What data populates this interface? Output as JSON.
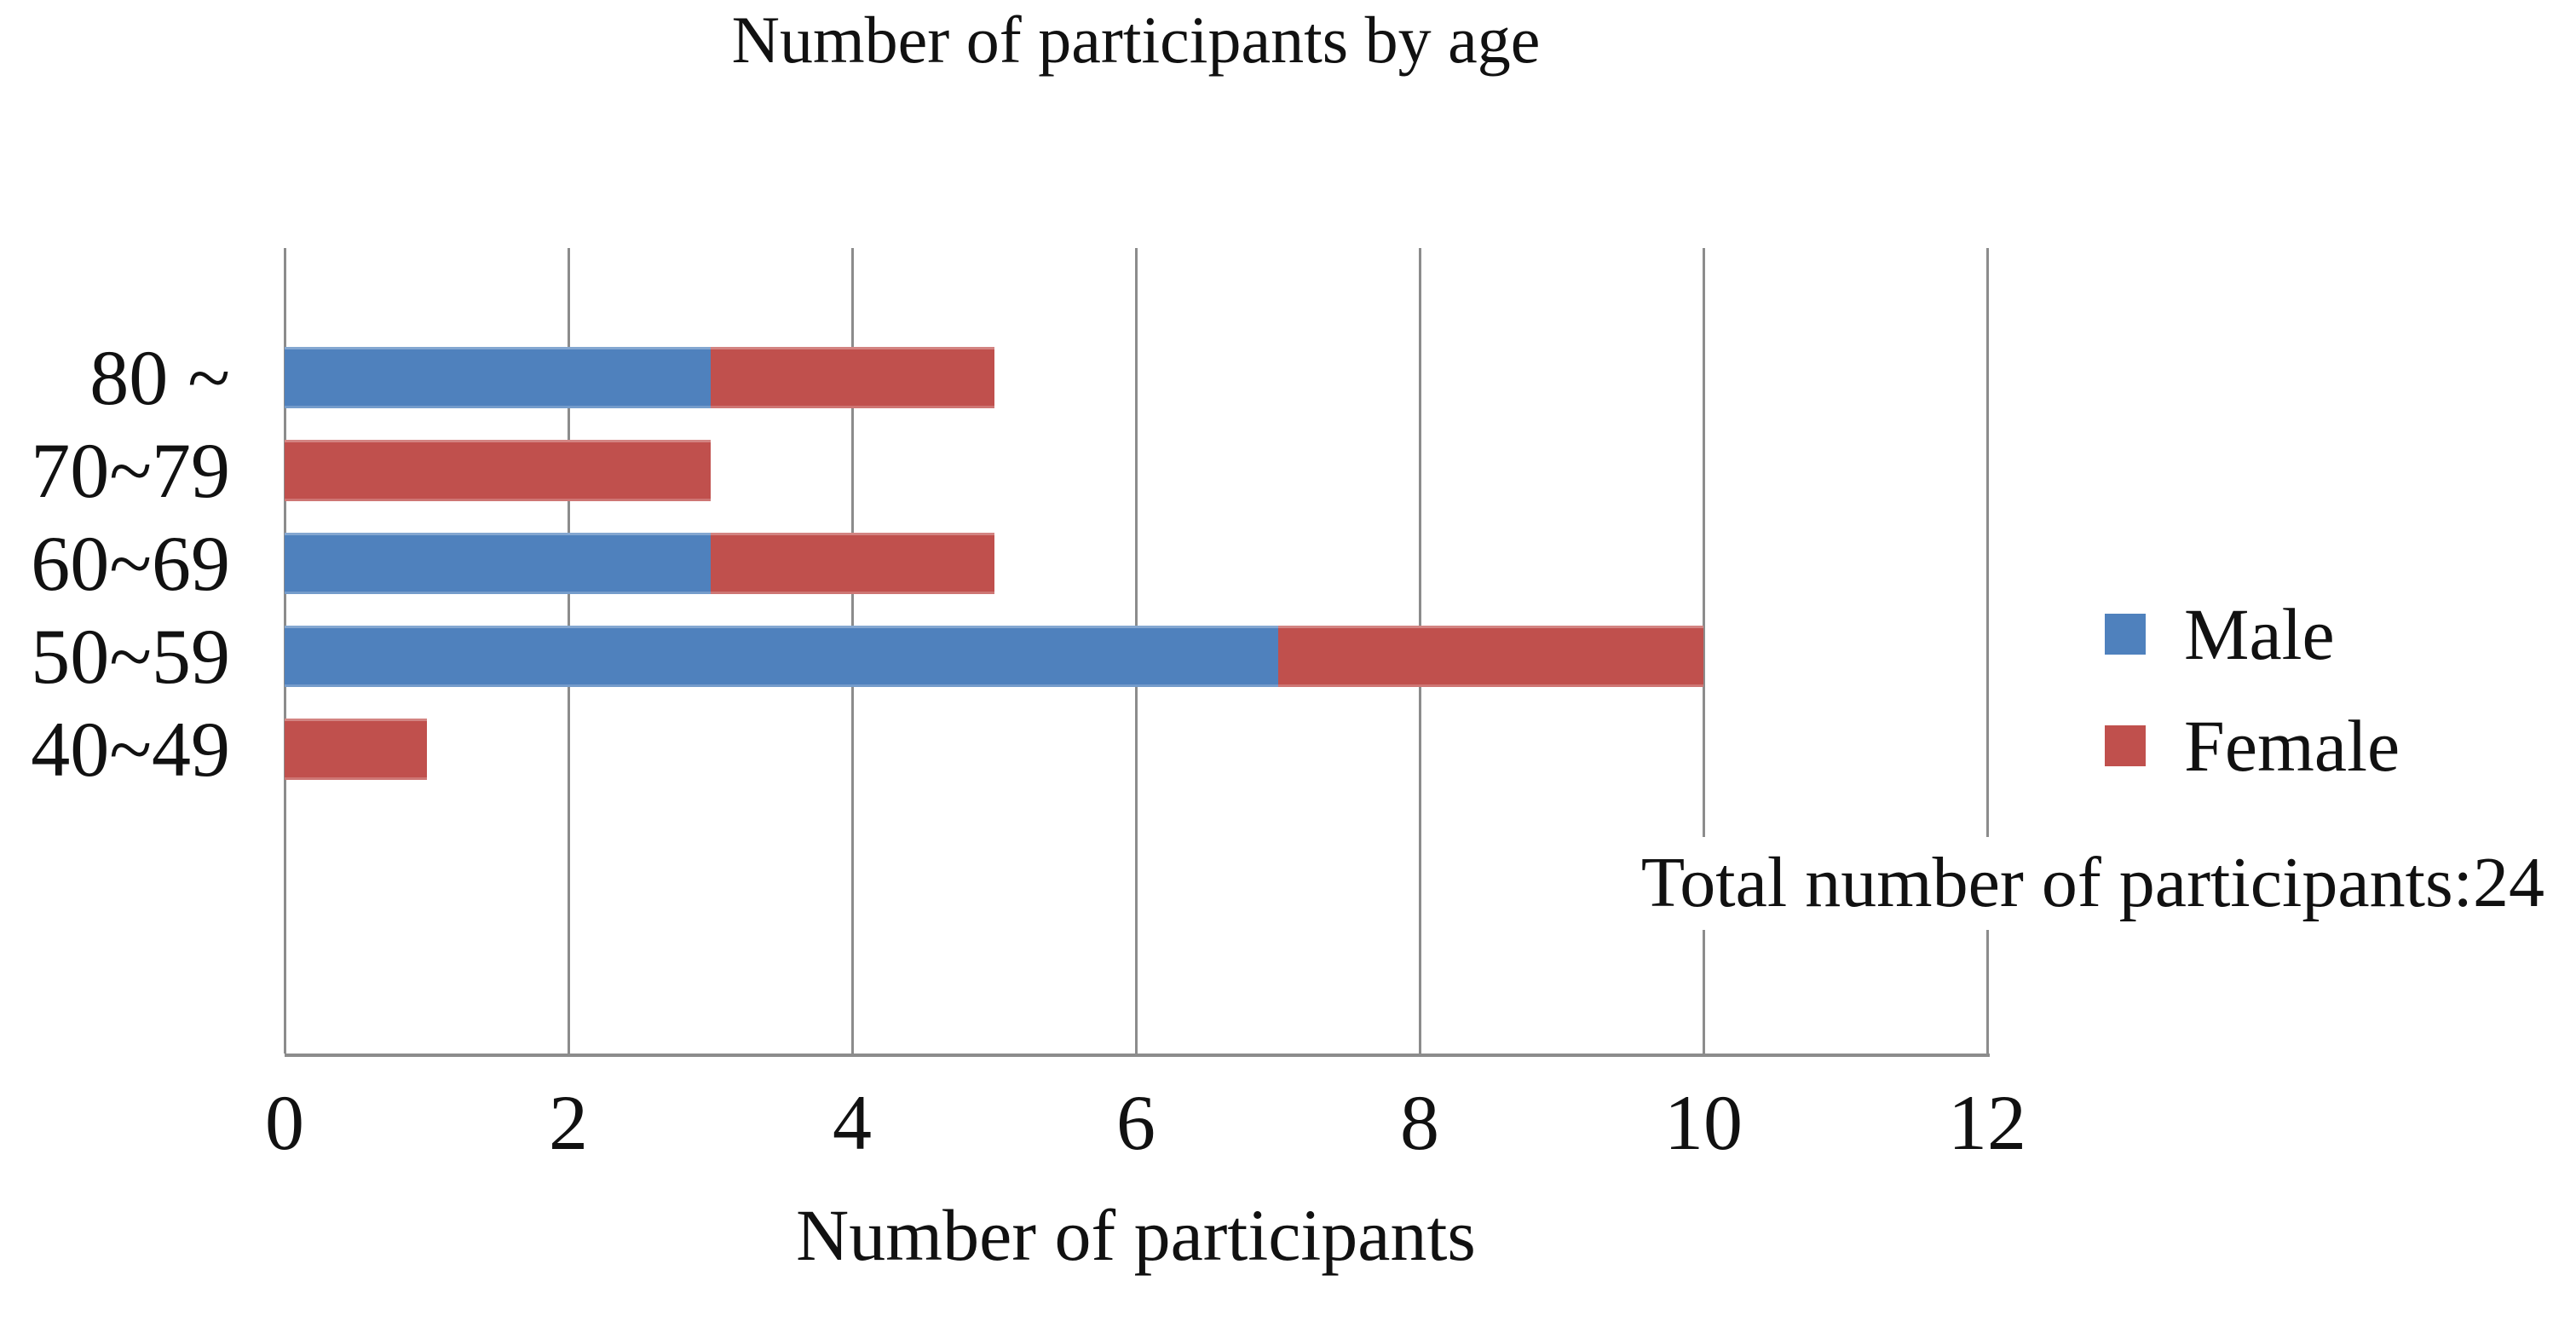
{
  "chart_data": {
    "type": "bar",
    "orientation": "horizontal",
    "stacked": true,
    "title": "Number of participants by age",
    "xlabel": "Number of participants",
    "categories": [
      "80 ~",
      "70~79",
      "60~69",
      "50~59",
      "40~49"
    ],
    "series": [
      {
        "name": "Male",
        "color": "#4F81BD",
        "values": [
          3,
          0,
          3,
          7,
          0
        ]
      },
      {
        "name": "Female",
        "color": "#C0504D",
        "values": [
          2,
          3,
          2,
          3,
          1
        ]
      }
    ],
    "xlim": [
      0,
      12
    ],
    "x_ticks": [
      0,
      2,
      4,
      6,
      8,
      10,
      12
    ],
    "grid": true,
    "gridline_color": "#8c8c8c",
    "legend_position": "right",
    "total_annotation": "Total number of participants:24",
    "total_participants": 24
  }
}
